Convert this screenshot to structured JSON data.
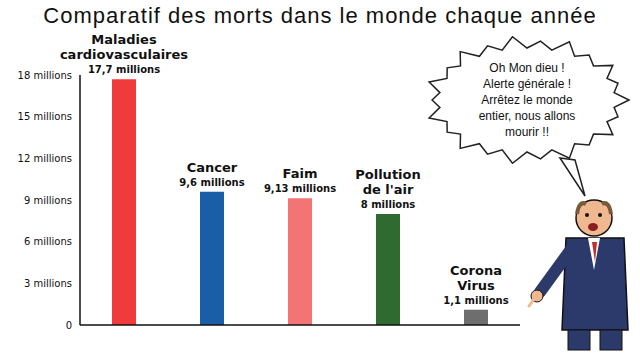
{
  "chart_data": {
    "type": "bar",
    "title": "Comparatif des morts dans le monde chaque année",
    "categories": [
      "Maladies cardiovasculaires",
      "Cancer",
      "Faim",
      "Pollution de l'air",
      "Corona Virus"
    ],
    "values": [
      17.7,
      9.6,
      9.13,
      8,
      1.1
    ],
    "value_labels": [
      "17,7 millions",
      "9,6 millions",
      "9,13 millions",
      "8 millions",
      "1,1 millions"
    ],
    "colors": [
      "#ef3b3b",
      "#1a5ea8",
      "#f27474",
      "#2f6a31",
      "#6e6e6e"
    ],
    "ylim": [
      0,
      18
    ],
    "yticks": [
      0,
      {
        "value": 3,
        "label": "3 millions"
      },
      {
        "value": 6,
        "label": "6 millions"
      },
      {
        "value": 9,
        "label": "9 millions"
      },
      {
        "value": 12,
        "label": "12 millions"
      },
      {
        "value": 15,
        "label": "15 millions"
      },
      {
        "value": 18,
        "label": "18 millions"
      }
    ],
    "data_labels": true,
    "tick_labels": "y",
    "grid": false,
    "annotation": "Oh Mon dieu ! Alerte générale ! Arrêtez le monde entier, nous allons mourir !!"
  }
}
